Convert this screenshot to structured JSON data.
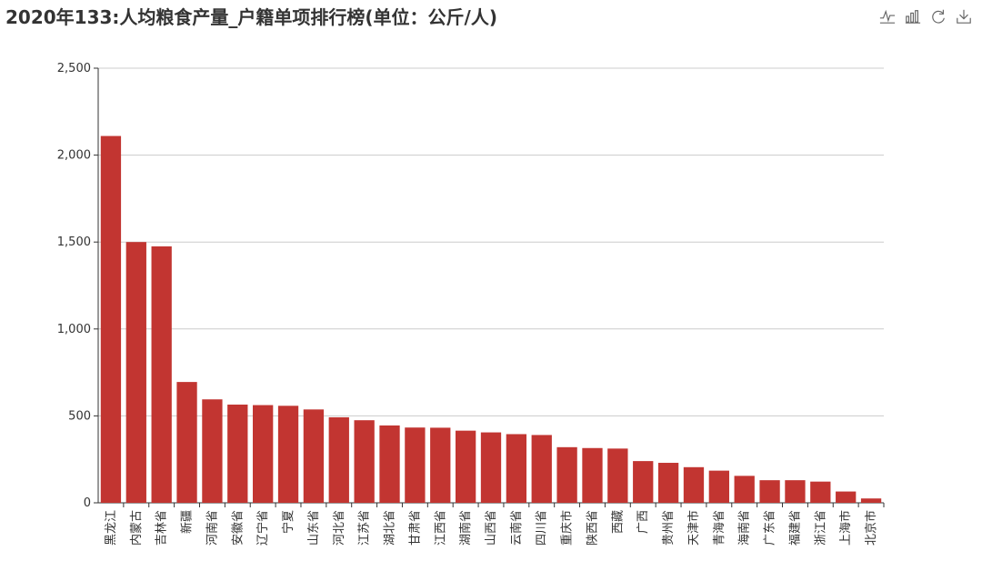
{
  "title": "2020年133:人均粮食产量_户籍单项排行榜(单位：公斤/人)",
  "toolbox": [
    {
      "name": "line-chart-icon",
      "icon": "line"
    },
    {
      "name": "bar-chart-icon",
      "icon": "bar"
    },
    {
      "name": "restore-icon",
      "icon": "refresh"
    },
    {
      "name": "download-icon",
      "icon": "download"
    }
  ],
  "colors": {
    "bar": "#c23531",
    "axis": "#333333",
    "grid": "#cccccc",
    "text": "#333333"
  },
  "chart_data": {
    "type": "bar",
    "categories": [
      "黑龙江",
      "内蒙古",
      "吉林省",
      "新疆",
      "河南省",
      "安徽省",
      "辽宁省",
      "宁夏",
      "山东省",
      "河北省",
      "江苏省",
      "湖北省",
      "甘肃省",
      "江西省",
      "湖南省",
      "山西省",
      "云南省",
      "四川省",
      "重庆市",
      "陕西省",
      "西藏",
      "广西",
      "贵州省",
      "天津市",
      "青海省",
      "海南省",
      "广东省",
      "福建省",
      "浙江省",
      "上海市",
      "北京市"
    ],
    "values": [
      2110,
      1500,
      1475,
      695,
      595,
      565,
      562,
      558,
      537,
      492,
      475,
      445,
      433,
      432,
      415,
      405,
      395,
      390,
      320,
      315,
      312,
      240,
      230,
      205,
      185,
      155,
      130,
      130,
      122,
      65,
      25
    ],
    "ylim": [
      0,
      2500
    ],
    "yticks": [
      0,
      500,
      1000,
      1500,
      2000,
      2500
    ],
    "ytick_labels": [
      "0",
      "500",
      "1,000",
      "1,500",
      "2,000",
      "2,500"
    ],
    "grid": true
  }
}
